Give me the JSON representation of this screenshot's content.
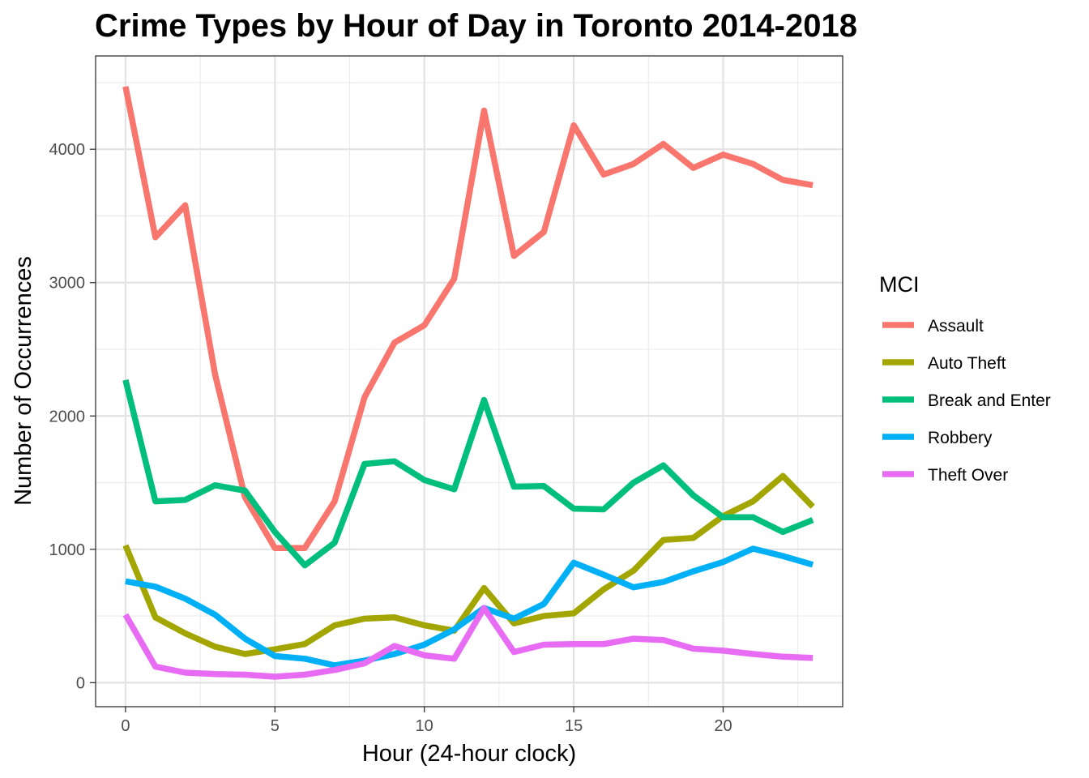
{
  "chart_data": {
    "type": "line",
    "title": "Crime Types by Hour of Day in Toronto 2014-2018",
    "xlabel": "Hour (24-hour clock)",
    "ylabel": "Number of Occurrences",
    "xlim": [
      -1,
      24
    ],
    "ylim": [
      -180,
      4700
    ],
    "x_ticks": [
      0,
      5,
      10,
      15,
      20
    ],
    "x_minor": [
      2.5,
      7.5,
      12.5,
      17.5,
      22.5
    ],
    "y_ticks": [
      0,
      1000,
      2000,
      3000,
      4000
    ],
    "y_minor": [
      500,
      1500,
      2500,
      3500,
      4500
    ],
    "grid": true,
    "legend": {
      "title": "MCI",
      "position": "right"
    },
    "x": [
      0,
      1,
      2,
      3,
      4,
      5,
      6,
      7,
      8,
      9,
      10,
      11,
      12,
      13,
      14,
      15,
      16,
      17,
      18,
      19,
      20,
      21,
      22,
      23
    ],
    "series": [
      {
        "name": "Assault",
        "color": "#F8766D",
        "values": [
          4470,
          3340,
          3580,
          2310,
          1390,
          1010,
          1010,
          1360,
          2140,
          2550,
          2680,
          3030,
          4290,
          3200,
          3380,
          4180,
          3810,
          3890,
          4040,
          3860,
          3960,
          3890,
          3770,
          3730
        ]
      },
      {
        "name": "Auto Theft",
        "color": "#A3A500",
        "values": [
          1030,
          490,
          370,
          270,
          215,
          250,
          290,
          430,
          480,
          490,
          430,
          390,
          710,
          445,
          500,
          520,
          700,
          840,
          1070,
          1085,
          1250,
          1360,
          1550,
          1320
        ]
      },
      {
        "name": "Break and Enter",
        "color": "#00BF7D",
        "values": [
          2270,
          1360,
          1370,
          1480,
          1440,
          1130,
          880,
          1050,
          1640,
          1660,
          1520,
          1450,
          2120,
          1470,
          1475,
          1305,
          1300,
          1500,
          1630,
          1405,
          1240,
          1240,
          1130,
          1220
        ]
      },
      {
        "name": "Robbery",
        "color": "#00B0F6",
        "values": [
          760,
          720,
          630,
          510,
          330,
          200,
          180,
          130,
          165,
          215,
          285,
          400,
          560,
          480,
          590,
          900,
          810,
          715,
          755,
          835,
          905,
          1005,
          950,
          885
        ]
      },
      {
        "name": "Theft Over",
        "color": "#E76BF3",
        "values": [
          510,
          120,
          75,
          65,
          60,
          45,
          60,
          95,
          145,
          275,
          205,
          180,
          560,
          230,
          285,
          290,
          290,
          330,
          320,
          255,
          240,
          215,
          195,
          185
        ]
      }
    ]
  }
}
